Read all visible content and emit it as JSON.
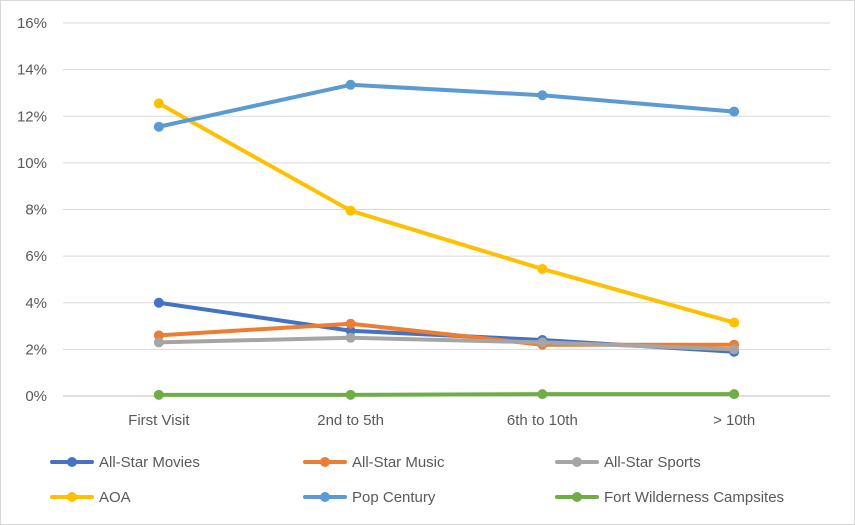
{
  "chart_data": {
    "type": "line",
    "title": "",
    "xlabel": "",
    "ylabel": "",
    "categories": [
      "First Visit",
      "2nd to 5th",
      "6th to 10th",
      "> 10th"
    ],
    "y_ticks": [
      "0%",
      "2%",
      "4%",
      "6%",
      "8%",
      "10%",
      "12%",
      "14%",
      "16%"
    ],
    "ylim": [
      0,
      16
    ],
    "grid": true,
    "legend_position": "bottom",
    "series": [
      {
        "name": "All-Star Movies",
        "color": "#4472C4",
        "values": [
          4.0,
          2.8,
          2.4,
          1.9
        ]
      },
      {
        "name": "All-Star Music",
        "color": "#ED7D31",
        "values": [
          2.6,
          3.1,
          2.2,
          2.2
        ]
      },
      {
        "name": "All-Star Sports",
        "color": "#A5A5A5",
        "values": [
          2.3,
          2.5,
          2.3,
          2.0
        ]
      },
      {
        "name": "AOA",
        "color": "#FFC000",
        "values": [
          12.55,
          7.95,
          5.45,
          3.15
        ]
      },
      {
        "name": "Pop Century",
        "color": "#5B9BD5",
        "values": [
          11.55,
          13.35,
          12.9,
          12.2
        ]
      },
      {
        "name": "Fort Wilderness Campsites",
        "color": "#70AD47",
        "values": [
          0.05,
          0.05,
          0.08,
          0.08
        ]
      }
    ]
  }
}
